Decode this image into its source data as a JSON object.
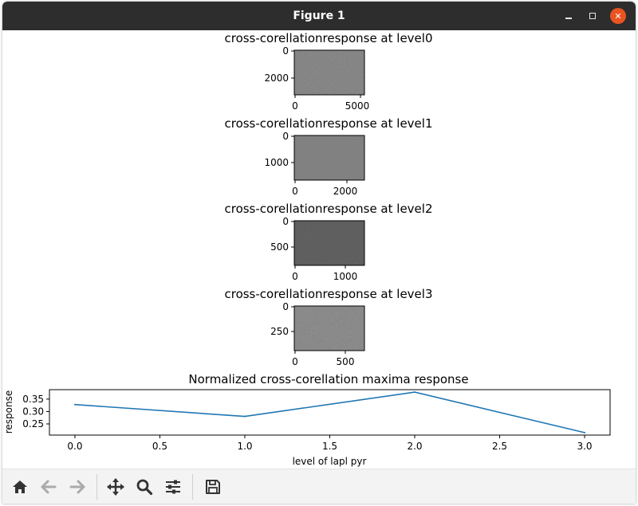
{
  "window": {
    "title": "Figure 1",
    "titlebar_color": "#2d2d2d",
    "close_color": "#e95420"
  },
  "toolbar": {
    "icons": [
      "home-icon",
      "back-arrow-icon",
      "forward-arrow-icon",
      "pan-icon",
      "zoom-icon",
      "configure-subplots-icon",
      "save-icon"
    ]
  },
  "chart_data": [
    {
      "type": "heatmap",
      "title": "cross-corellationresponse at level0",
      "yticks": [
        "0",
        "2000"
      ],
      "xticks": [
        "0",
        "5000"
      ],
      "tone": "#7a7a7a"
    },
    {
      "type": "heatmap",
      "title": "cross-corellationresponse at level1",
      "yticks": [
        "0",
        "1000"
      ],
      "xticks": [
        "0",
        "2000"
      ],
      "tone": "#777777"
    },
    {
      "type": "heatmap",
      "title": "cross-corellationresponse at level2",
      "yticks": [
        "0",
        "500"
      ],
      "xticks": [
        "0",
        "1000"
      ],
      "tone": "#555555"
    },
    {
      "type": "heatmap",
      "title": "cross-corellationresponse at level3",
      "yticks": [
        "0",
        "250"
      ],
      "xticks": [
        "0",
        "500"
      ],
      "tone": "#8a8a8a"
    },
    {
      "type": "line",
      "title": "Normalized cross-corellation maxima response",
      "xlabel": "level of lapl pyr",
      "ylabel": "response",
      "x": [
        0,
        1,
        2,
        3
      ],
      "y": [
        0.328,
        0.28,
        0.378,
        0.215
      ],
      "xlim": [
        -0.15,
        3.15
      ],
      "ylim": [
        0.205,
        0.388
      ],
      "xticks": [
        0.0,
        0.5,
        1.0,
        1.5,
        2.0,
        2.5,
        3.0
      ],
      "xtick_labels": [
        "0.0",
        "0.5",
        "1.0",
        "1.5",
        "2.0",
        "2.5",
        "3.0"
      ],
      "yticks": [
        0.25,
        0.3,
        0.35
      ],
      "ytick_labels": [
        "0.25",
        "0.30",
        "0.35"
      ],
      "line_color": "#1f77b4"
    }
  ]
}
